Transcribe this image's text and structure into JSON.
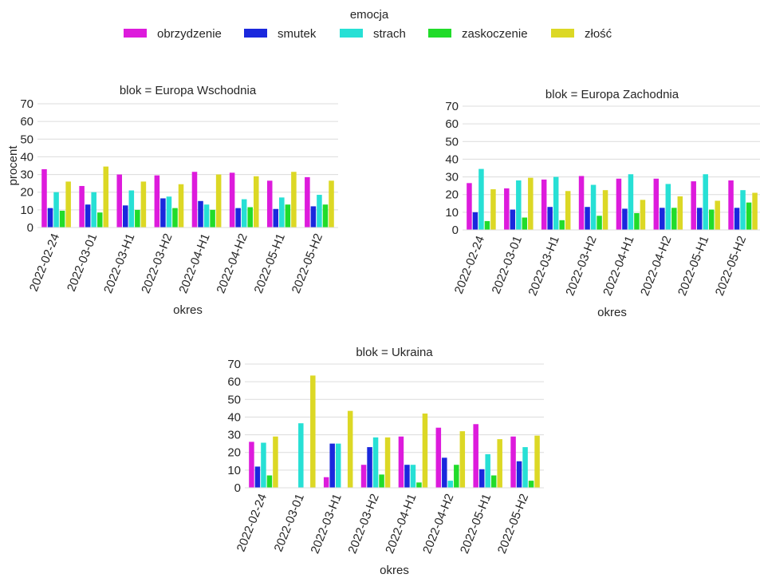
{
  "legend": {
    "title": "emocja",
    "items": [
      {
        "label": "obrzydzenie",
        "color": "#dd1bdc"
      },
      {
        "label": "smutek",
        "color": "#1a28dd"
      },
      {
        "label": "strach",
        "color": "#27e0d5"
      },
      {
        "label": "zaskoczenie",
        "color": "#21dc2a"
      },
      {
        "label": "złość",
        "color": "#dcd825"
      }
    ]
  },
  "chart_data": [
    {
      "type": "bar",
      "title": "blok = Europa Wschodnia",
      "xlabel": "okres",
      "ylabel": "procent",
      "ylim": [
        0,
        70
      ],
      "yticks": [
        0,
        10,
        20,
        30,
        40,
        50,
        60,
        70
      ],
      "categories": [
        "2022-02-24",
        "2022-03-01",
        "2022-03-H1",
        "2022-03-H2",
        "2022-04-H1",
        "2022-04-H2",
        "2022-05-H1",
        "2022-05-H2"
      ],
      "series": [
        {
          "name": "obrzydzenie",
          "values": [
            33,
            23.5,
            30,
            29.5,
            31.5,
            31,
            26.5,
            28.5
          ]
        },
        {
          "name": "smutek",
          "values": [
            11,
            13,
            12.5,
            16.5,
            15,
            11,
            10.5,
            12
          ]
        },
        {
          "name": "strach",
          "values": [
            20,
            20,
            21,
            17.5,
            13,
            16,
            17,
            18.5
          ]
        },
        {
          "name": "zaskoczenie",
          "values": [
            9.5,
            8.5,
            10,
            11,
            10,
            11.5,
            13,
            13
          ]
        },
        {
          "name": "złość",
          "values": [
            26,
            34.5,
            26,
            24.5,
            30,
            29,
            31.5,
            26.5
          ]
        }
      ]
    },
    {
      "type": "bar",
      "title": "blok = Europa Zachodnia",
      "xlabel": "okres",
      "ylabel": "",
      "ylim": [
        0,
        70
      ],
      "yticks": [
        0,
        10,
        20,
        30,
        40,
        50,
        60,
        70
      ],
      "categories": [
        "2022-02-24",
        "2022-03-01",
        "2022-03-H1",
        "2022-03-H2",
        "2022-04-H1",
        "2022-04-H2",
        "2022-05-H1",
        "2022-05-H2"
      ],
      "series": [
        {
          "name": "obrzydzenie",
          "values": [
            26.5,
            23.5,
            28.5,
            30.5,
            29,
            29,
            27.5,
            28
          ]
        },
        {
          "name": "smutek",
          "values": [
            10,
            11.5,
            13,
            13,
            12,
            12.5,
            12.5,
            12.5
          ]
        },
        {
          "name": "strach",
          "values": [
            34.5,
            28,
            30,
            25.5,
            31.5,
            26,
            31.5,
            22.5
          ]
        },
        {
          "name": "zaskoczenie",
          "values": [
            5,
            7,
            5.5,
            8,
            9.5,
            12.5,
            11.5,
            15.5
          ]
        },
        {
          "name": "złość",
          "values": [
            23,
            29.5,
            22,
            22.5,
            17,
            19,
            16.5,
            21
          ]
        }
      ]
    },
    {
      "type": "bar",
      "title": "blok = Ukraina",
      "xlabel": "okres",
      "ylabel": "",
      "ylim": [
        0,
        70
      ],
      "yticks": [
        0,
        10,
        20,
        30,
        40,
        50,
        60,
        70
      ],
      "categories": [
        "2022-02-24",
        "2022-03-01",
        "2022-03-H1",
        "2022-03-H2",
        "2022-04-H1",
        "2022-04-H2",
        "2022-05-H1",
        "2022-05-H2"
      ],
      "series": [
        {
          "name": "obrzydzenie",
          "values": [
            26,
            0,
            6,
            13,
            29,
            34,
            36,
            29
          ]
        },
        {
          "name": "smutek",
          "values": [
            12,
            0,
            25,
            23,
            13,
            17,
            10.5,
            15
          ]
        },
        {
          "name": "strach",
          "values": [
            25.5,
            36.5,
            25,
            28.5,
            13,
            4,
            19,
            23
          ]
        },
        {
          "name": "zaskoczenie",
          "values": [
            7,
            0,
            0,
            7.5,
            3,
            13,
            7,
            4
          ]
        },
        {
          "name": "złość",
          "values": [
            29,
            63.5,
            43.5,
            28.5,
            42,
            32,
            27.5,
            29.5
          ]
        }
      ]
    }
  ]
}
